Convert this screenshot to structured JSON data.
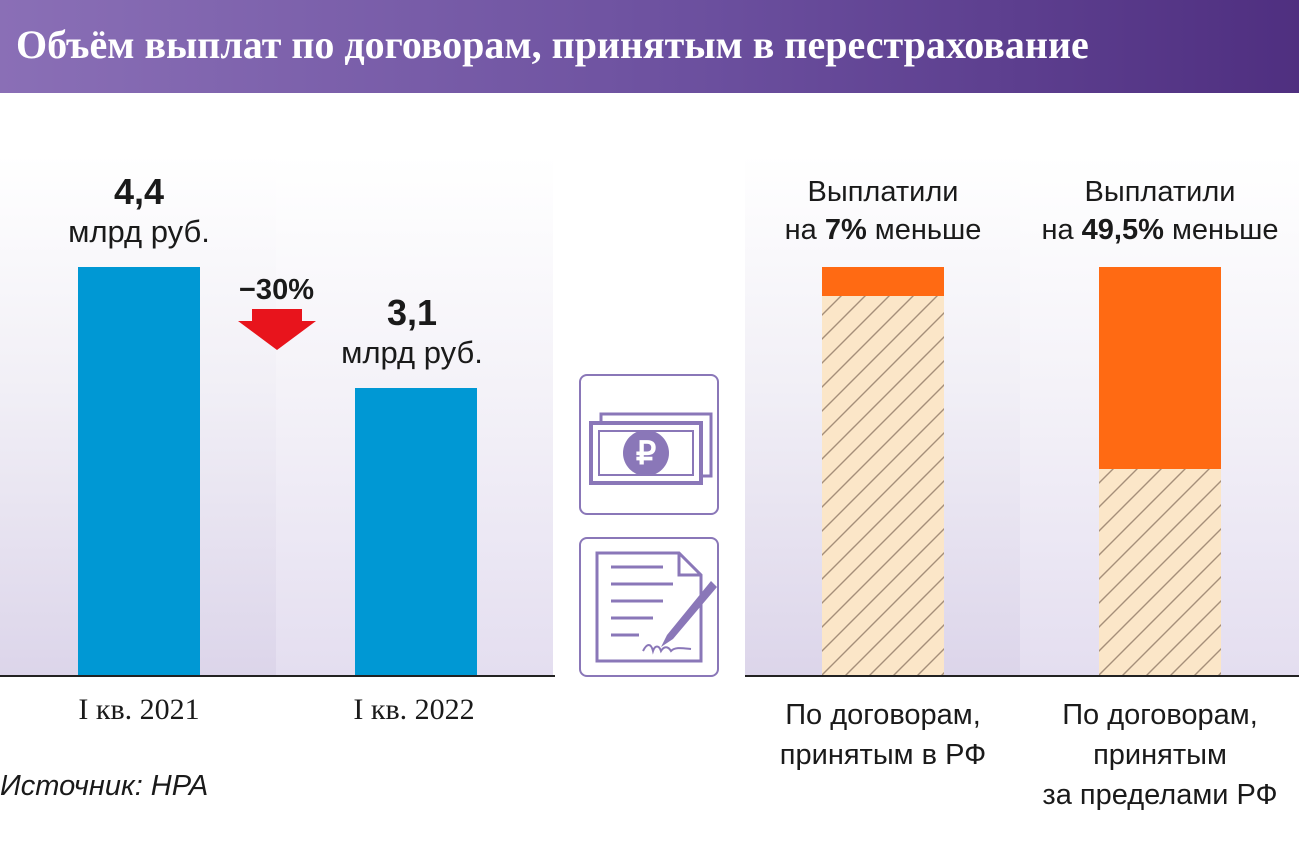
{
  "title": "Объём выплат по договорам, принятым в перестрахование",
  "source": "Источник: НРА",
  "colors": {
    "blue": "#0098d4",
    "orange": "#ff6a13",
    "hatch_bg": "#fbe6c8",
    "hatch_line": "#a58f7a",
    "purple": "#8a77b8",
    "arrow": "#e8141c"
  },
  "icons": [
    "money-ruble-icon",
    "contract-pen-icon",
    "down-arrow-icon"
  ],
  "chart_data": [
    {
      "type": "bar",
      "categories": [
        "I кв. 2021",
        "I кв. 2022"
      ],
      "values": [
        4.4,
        3.1
      ],
      "value_labels": [
        "4,4",
        "3,1"
      ],
      "unit": "млрд руб.",
      "change_label": "−30%",
      "ylim": [
        0,
        4.4
      ]
    },
    {
      "type": "bar",
      "categories": [
        "По договорам, принятым в РФ",
        "По договорам, принятым за пределами РФ"
      ],
      "category_lines": [
        [
          "По договорам,",
          "принятым в РФ"
        ],
        [
          "По договорам,",
          "принятым",
          "за пределами РФ"
        ]
      ],
      "headers": [
        {
          "line1": "Выплатили",
          "pre": "на ",
          "value": "7%",
          "post": " меньше"
        },
        {
          "line1": "Выплатили",
          "pre": "на ",
          "value": "49,5%",
          "post": " меньше"
        }
      ],
      "decrease_pct": [
        7,
        49.5
      ]
    }
  ]
}
